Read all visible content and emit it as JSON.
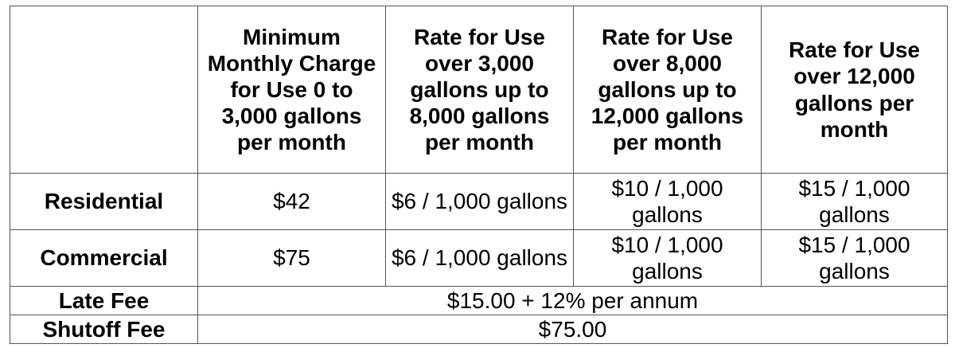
{
  "table": {
    "headers": [
      "",
      "Minimum Monthly Charge for Use 0 to 3,000 gallons per month",
      "Rate for Use over 3,000 gallons up to 8,000 gallons per month",
      "Rate for Use over 8,000 gallons up to 12,000 gallons per month",
      "Rate for Use over 12,000 gallons per month"
    ],
    "rows": [
      {
        "label": "Residential",
        "cells": [
          "$42",
          "$6 / 1,000 gallons",
          "$10 / 1,000 gallons",
          "$15 / 1,000 gallons"
        ]
      },
      {
        "label": "Commercial",
        "cells": [
          "$75",
          "$6 / 1,000 gallons",
          "$10 / 1,000 gallons",
          "$15 / 1,000 gallons"
        ]
      }
    ],
    "fees": [
      {
        "label": "Late Fee",
        "value": "$15.00 + 12% per annum"
      },
      {
        "label": "Shutoff Fee",
        "value": "$75.00"
      }
    ]
  }
}
